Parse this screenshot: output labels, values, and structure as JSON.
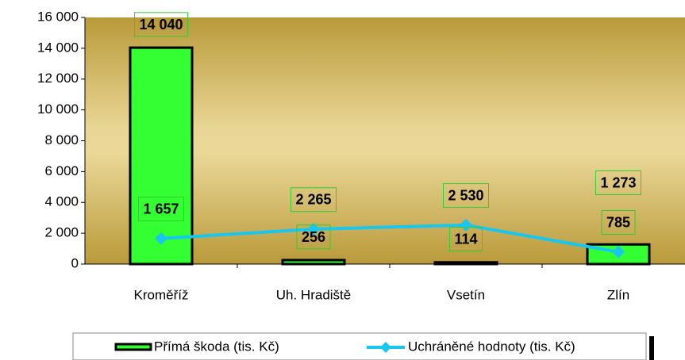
{
  "chart_data": {
    "type": "bar_line",
    "categories": [
      "Kroměříž",
      "Uh. Hradiště",
      "Vsetín",
      "Zlín"
    ],
    "series": [
      {
        "name": "Přímá škoda (tis. Kč)",
        "type": "bar",
        "color": "#33ff33",
        "values": [
          14040,
          256,
          114,
          1273
        ],
        "value_labels": [
          "14 040",
          "256",
          "114",
          "1 273"
        ]
      },
      {
        "name": "Uchráněné hodnoty (tis. Kč)",
        "type": "line",
        "color": "#19c6ee",
        "values": [
          1657,
          2265,
          2530,
          785
        ],
        "value_labels": [
          "1 657",
          "2 265",
          "2 530",
          "785"
        ]
      }
    ],
    "ylim": [
      0,
      16000
    ],
    "yticks": [
      0,
      {
        "value": 2000,
        "label": "2 000"
      },
      {
        "value": 4000,
        "label": "4 000"
      },
      {
        "value": 6000,
        "label": "6 000"
      },
      {
        "value": 8000,
        "label": "8 000"
      },
      {
        "value": 10000,
        "label": "10 000"
      },
      {
        "value": 12000,
        "label": "12 000"
      },
      {
        "value": 14000,
        "label": "14 000"
      },
      {
        "value": 16000,
        "label": "16 000"
      }
    ]
  }
}
